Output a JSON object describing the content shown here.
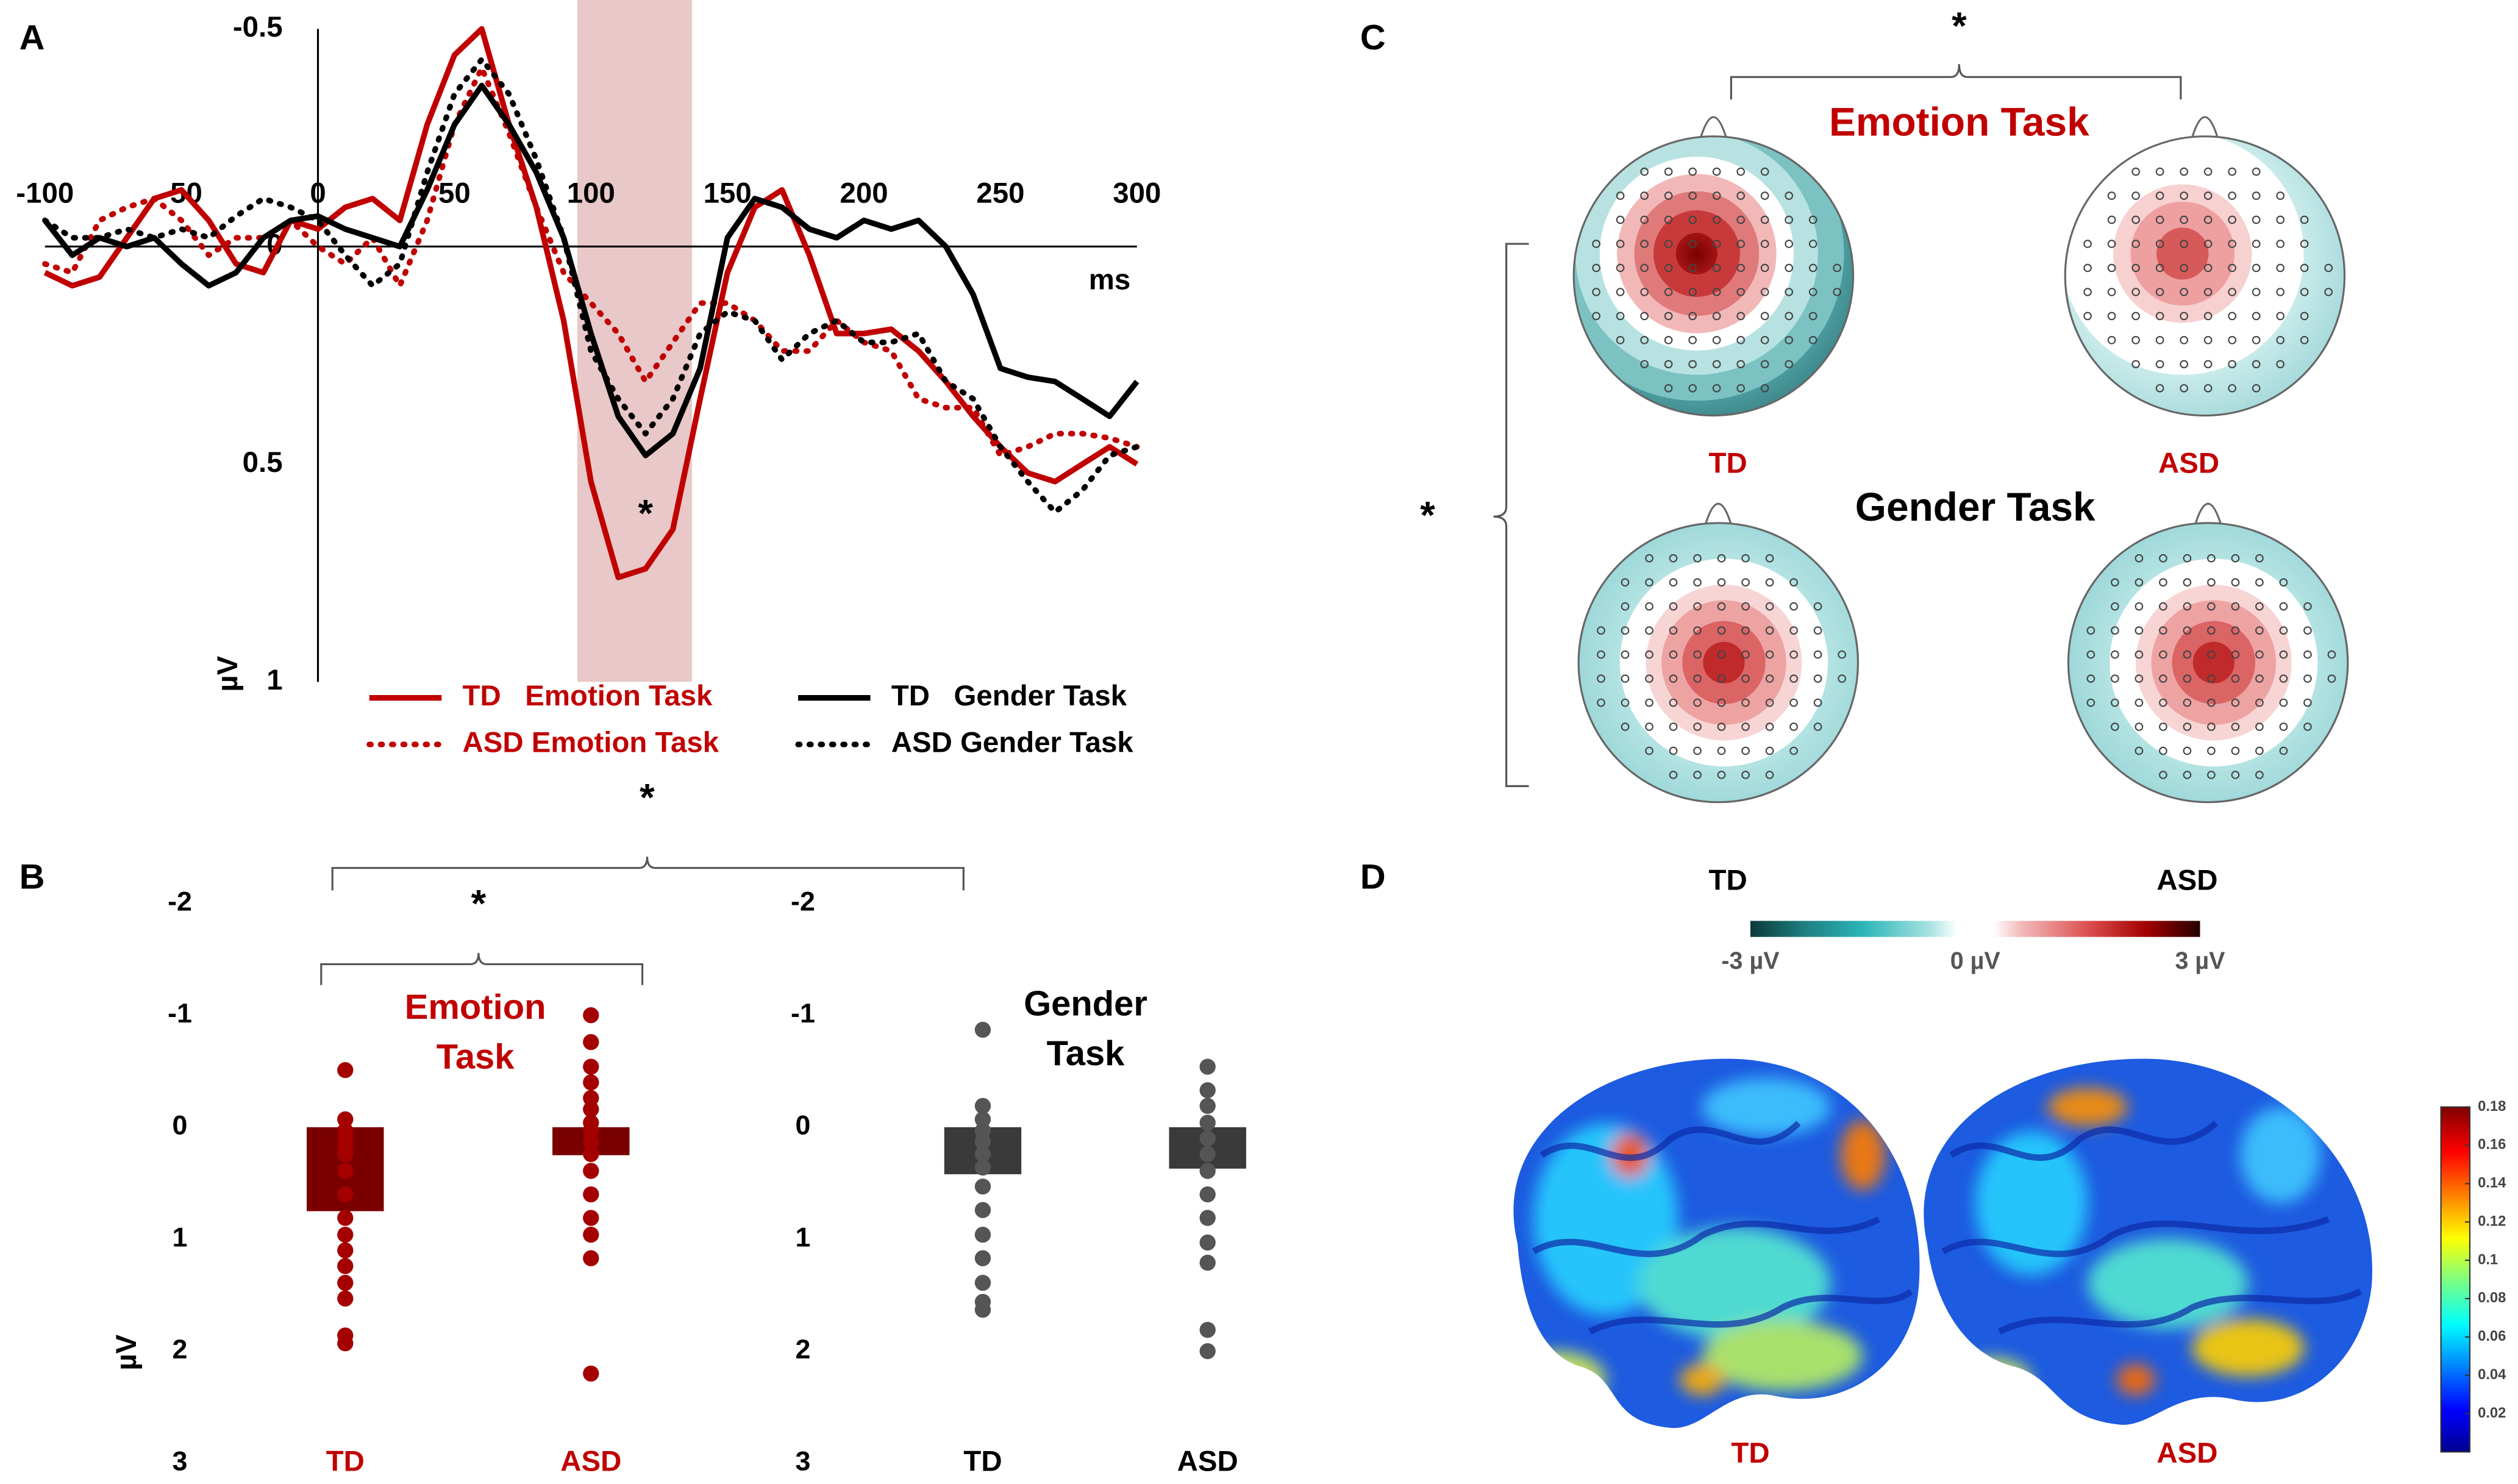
{
  "panel_labels": {
    "a": "A",
    "b": "B",
    "c": "C",
    "d": "D"
  },
  "panel_b_comparison_label": "*",
  "chart_data": [
    {
      "type": "line",
      "xlabel": "ms",
      "ylabel": "µV",
      "xlim": [
        -100,
        300
      ],
      "xticks": [
        -100,
        -50,
        0,
        50,
        100,
        150,
        200,
        250,
        300
      ],
      "ylim": [
        -0.5,
        1
      ],
      "yticks": [
        -0.5,
        0,
        0.5,
        1
      ],
      "y_inverted": true,
      "legend": "bottom",
      "shaded_range": [
        95,
        137
      ],
      "shade_color": "#e8c8c8",
      "annotation": {
        "text": "*",
        "x": 120,
        "y": 0.62
      },
      "x": [
        -100,
        -90,
        -80,
        -70,
        -60,
        -50,
        -40,
        -30,
        -20,
        -10,
        0,
        10,
        20,
        30,
        40,
        50,
        60,
        70,
        80,
        90,
        100,
        110,
        120,
        130,
        140,
        150,
        160,
        170,
        180,
        190,
        200,
        210,
        220,
        230,
        240,
        250,
        260,
        270,
        280,
        290,
        300
      ],
      "series": [
        {
          "name": "TD   Emotion Task",
          "color": "#c00000",
          "style": "solid",
          "values": [
            0.06,
            0.09,
            0.07,
            -0.02,
            -0.11,
            -0.13,
            -0.06,
            0.04,
            0.06,
            -0.06,
            -0.04,
            -0.09,
            -0.11,
            -0.06,
            -0.28,
            -0.44,
            -0.5,
            -0.28,
            -0.09,
            0.17,
            0.54,
            0.76,
            0.74,
            0.65,
            0.35,
            0.06,
            -0.09,
            -0.13,
            0.02,
            0.2,
            0.2,
            0.19,
            0.24,
            0.31,
            0.39,
            0.46,
            0.52,
            0.54,
            0.5,
            0.46,
            0.5
          ]
        },
        {
          "name": "ASD Emotion Task",
          "color": "#c00000",
          "style": "dotted",
          "values": [
            0.04,
            0.06,
            -0.06,
            -0.09,
            -0.11,
            -0.06,
            0.02,
            -0.02,
            -0.02,
            -0.06,
            0,
            0.04,
            -0.02,
            0.09,
            -0.06,
            -0.28,
            -0.41,
            -0.26,
            -0.09,
            0.06,
            0.13,
            0.2,
            0.31,
            0.22,
            0.13,
            0.13,
            0.17,
            0.24,
            0.24,
            0.17,
            0.22,
            0.24,
            0.35,
            0.37,
            0.37,
            0.48,
            0.46,
            0.43,
            0.43,
            0.44,
            0.46
          ]
        },
        {
          "name": "TD   Gender Task",
          "color": "#000000",
          "style": "solid",
          "values": [
            -0.06,
            0.02,
            -0.02,
            0,
            -0.02,
            0.04,
            0.09,
            0.06,
            -0.02,
            -0.06,
            -0.07,
            -0.04,
            -0.02,
            0,
            -0.13,
            -0.28,
            -0.37,
            -0.28,
            -0.17,
            -0.02,
            0.2,
            0.39,
            0.48,
            0.43,
            0.28,
            -0.02,
            -0.11,
            -0.09,
            -0.04,
            -0.02,
            -0.06,
            -0.04,
            -0.06,
            0,
            0.11,
            0.28,
            0.3,
            0.31,
            0.35,
            0.39,
            0.31
          ]
        },
        {
          "name": "ASD Gender Task",
          "color": "#000000",
          "style": "dotted",
          "values": [
            -0.06,
            -0.02,
            -0.02,
            -0.04,
            -0.02,
            -0.04,
            -0.02,
            -0.07,
            -0.11,
            -0.09,
            -0.06,
            0.02,
            0.09,
            0.04,
            -0.17,
            -0.35,
            -0.43,
            -0.35,
            -0.2,
            -0.02,
            0.24,
            0.35,
            0.43,
            0.35,
            0.2,
            0.15,
            0.17,
            0.26,
            0.2,
            0.17,
            0.22,
            0.22,
            0.2,
            0.31,
            0.35,
            0.46,
            0.54,
            0.61,
            0.56,
            0.48,
            0.46
          ]
        }
      ]
    },
    {
      "type": "bar",
      "title": "Emotion Task",
      "ylabel": "µV",
      "comparison_label": "*",
      "categories": [
        "TD",
        "ASD"
      ],
      "values": [
        0.75,
        0.25
      ],
      "points": [
        [
          -0.51,
          -0.07,
          0.03,
          0.1,
          0.17,
          0.24,
          0.39,
          0.6,
          0.81,
          0.96,
          1.1,
          1.24,
          1.39,
          1.53,
          1.86,
          1.93
        ],
        [
          -1.0,
          -0.76,
          -0.54,
          -0.4,
          -0.26,
          -0.16,
          -0.04,
          0.03,
          0.13,
          0.24,
          0.39,
          0.6,
          0.81,
          0.96,
          1.17,
          2.2
        ]
      ],
      "color": "#7a0000",
      "point_color": "#a50000",
      "text_color": "#c00000",
      "ylim": [
        -2,
        3
      ],
      "yticks": [
        -2,
        -1,
        0,
        1,
        2,
        3
      ],
      "y_inverted": true
    },
    {
      "type": "bar",
      "title": "Gender Task",
      "categories": [
        "TD",
        "ASD"
      ],
      "values": [
        0.42,
        0.37
      ],
      "points": [
        [
          -0.87,
          -0.19,
          -0.07,
          0.03,
          0.13,
          0.24,
          0.36,
          0.53,
          0.74,
          0.96,
          1.17,
          1.39,
          1.56,
          1.63
        ],
        [
          -0.54,
          -0.33,
          -0.19,
          -0.04,
          0.1,
          0.24,
          0.39,
          0.6,
          0.81,
          1.03,
          1.21,
          1.81,
          2.0
        ]
      ],
      "color": "#3a3a3a",
      "point_color": "#555555",
      "text_color": "#000000",
      "ylim": [
        -2,
        3
      ],
      "yticks": [
        -2,
        -1,
        0,
        1,
        2,
        3
      ],
      "y_inverted": true
    }
  ],
  "topomaps": {
    "emotion_title": "Emotion Task",
    "gender_title": "Gender Task",
    "row_labels": [
      "TD",
      "ASD"
    ],
    "task_comparison_label": "*",
    "group_comparison_label": "*",
    "column_labels": [
      "TD",
      "ASD"
    ],
    "colorbar_labels": [
      "-3 µV",
      "0 µV",
      "3 µV"
    ]
  },
  "brain": {
    "labels": [
      "TD",
      "ASD"
    ],
    "colorbar": {
      "lim": [
        0,
        0.18
      ],
      "ticks": [
        0.02,
        0.04,
        0.06,
        0.08,
        0.1,
        0.12,
        0.14,
        0.16,
        0.18
      ]
    }
  }
}
